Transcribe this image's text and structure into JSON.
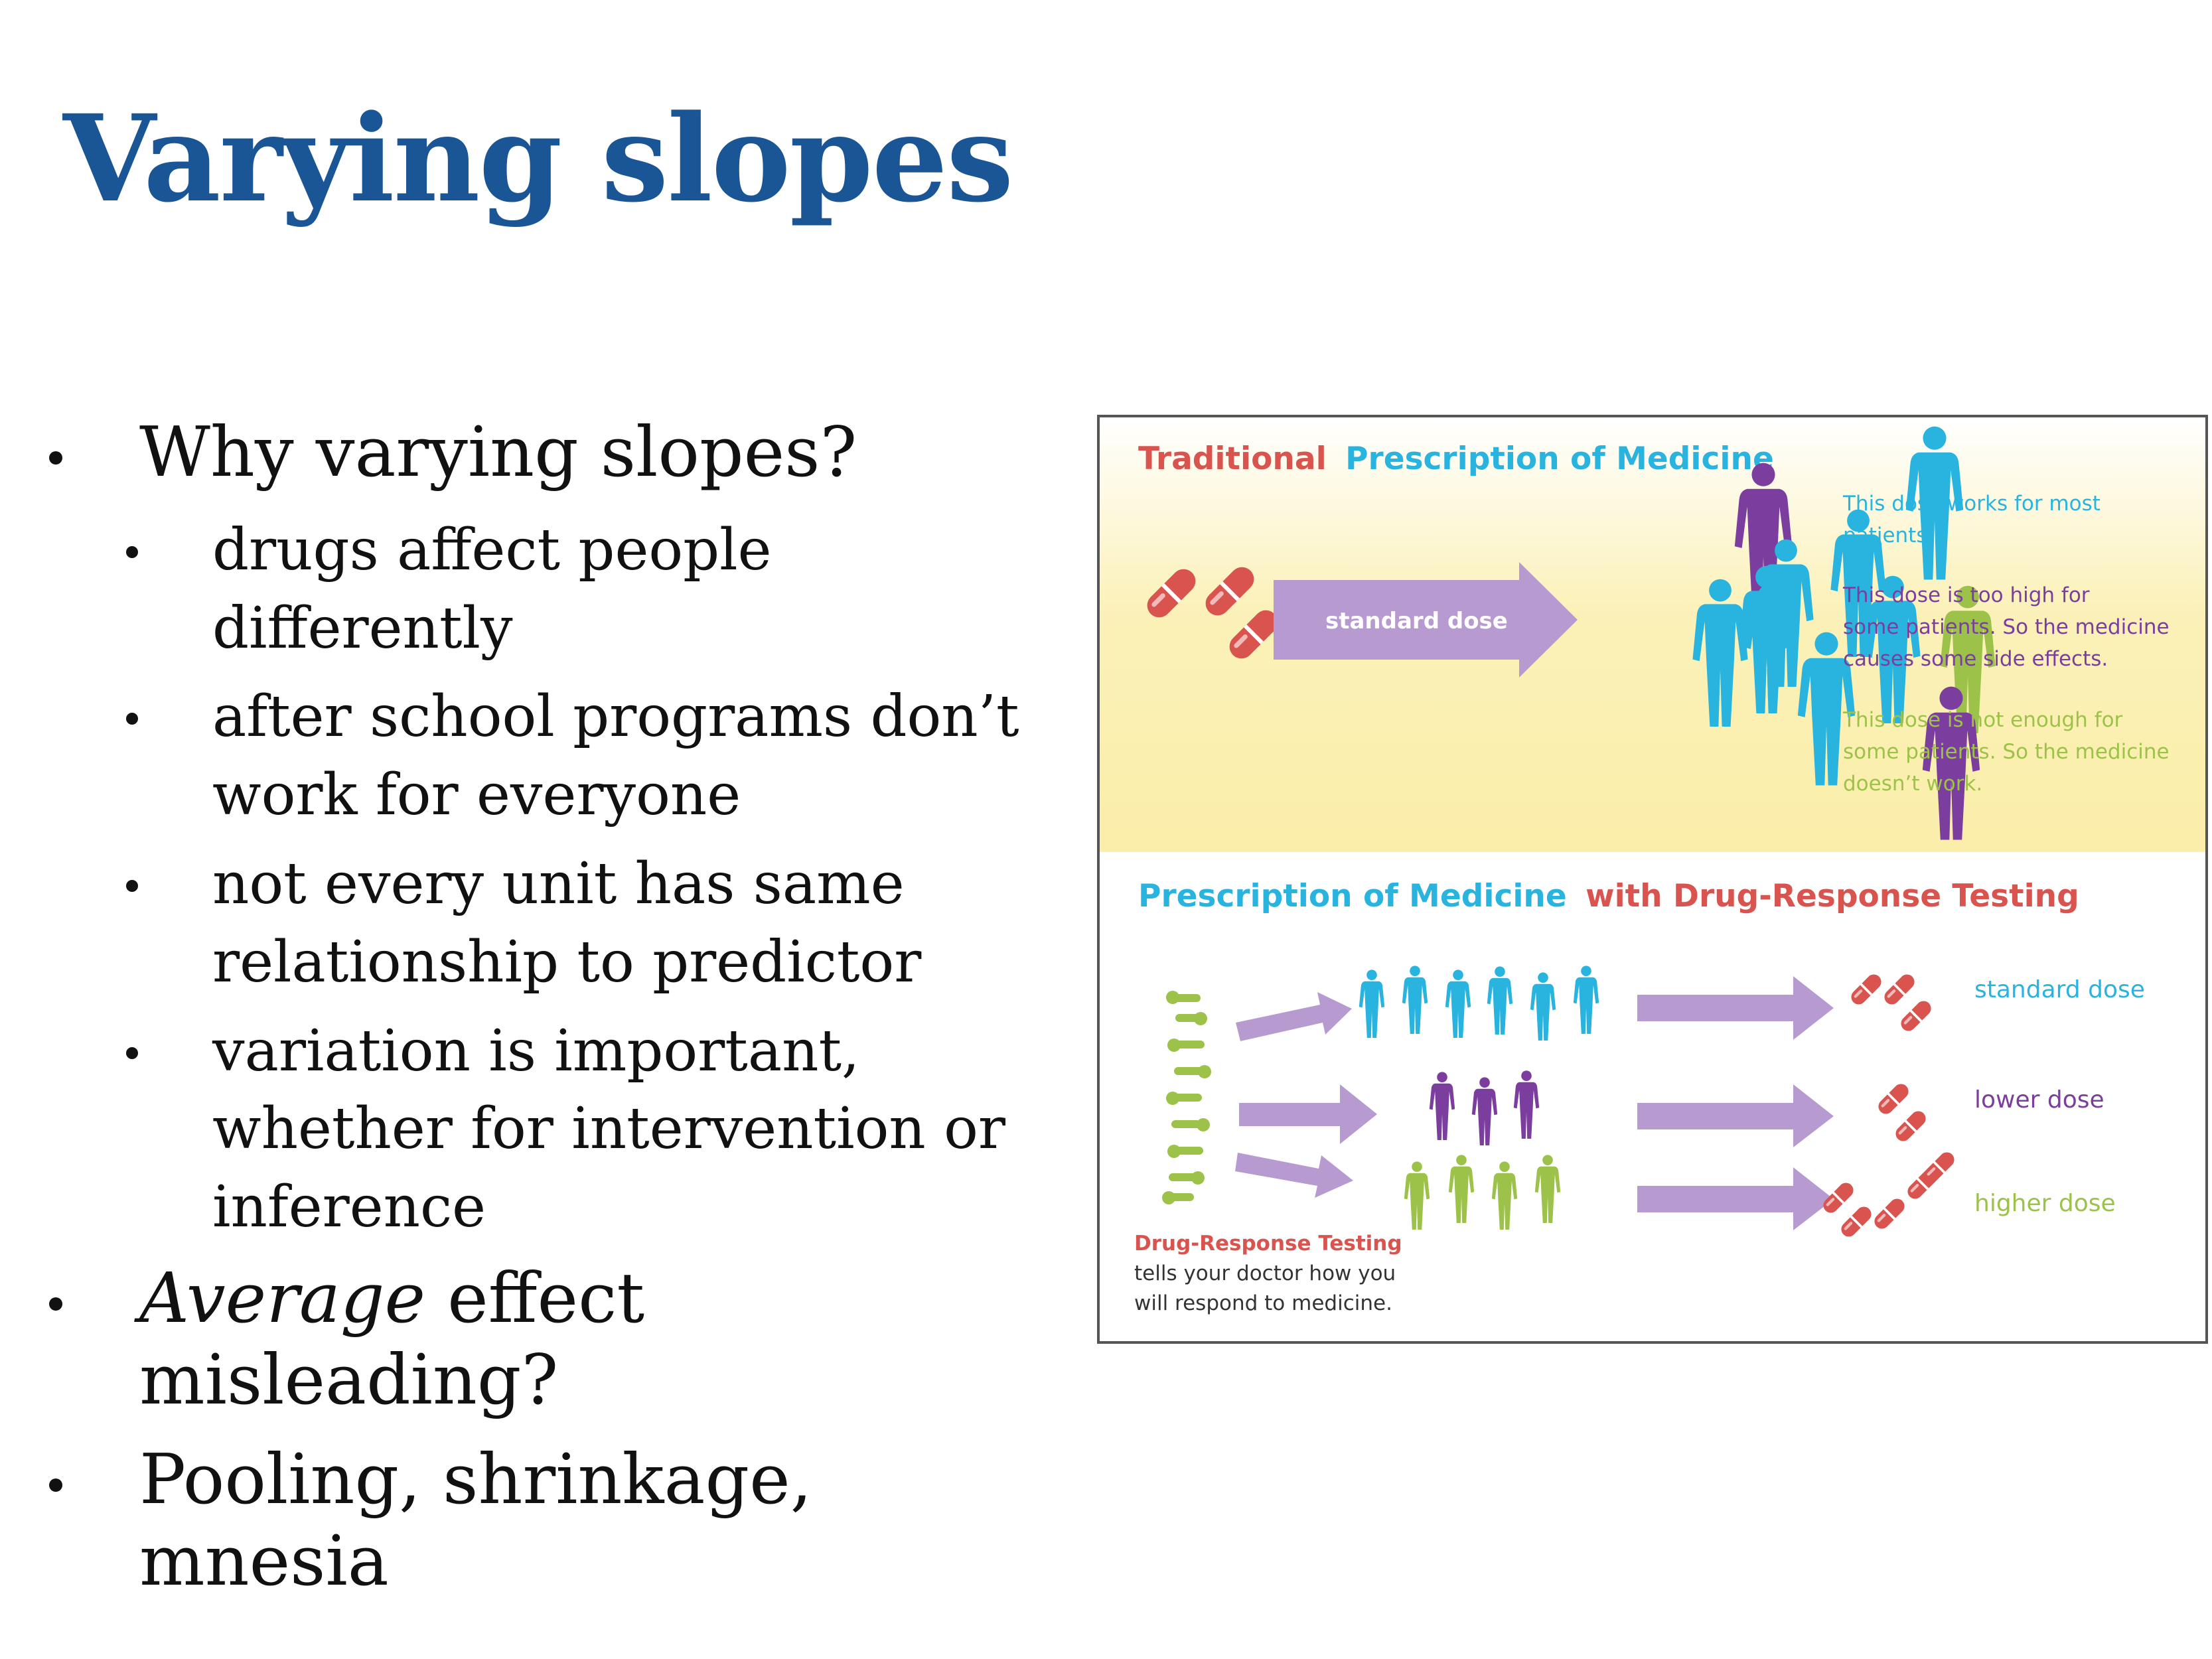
{
  "slide": {
    "title": "Varying slopes",
    "bullets": [
      {
        "text": "Why varying slopes?",
        "sub": [
          "drugs affect people differently",
          "after school programs don’t work for everyone",
          "not every unit has same relationship to predictor",
          "variation is important, whether for intervention or inference"
        ]
      },
      {
        "italic": "Average",
        "text": " effect misleading?"
      },
      {
        "text": "Pooling, shrinkage, mnesia"
      }
    ]
  },
  "figure": {
    "top": {
      "title_part1": "Traditional",
      "title_part2": "Prescription of Medicine",
      "arrow_label": "standard dose",
      "note1": [
        "This dose works for most",
        "patients."
      ],
      "note2": [
        "This dose is too high for",
        "some patients. So the medicine",
        "causes some side effects."
      ],
      "note3": [
        "This dose is not enough for",
        "some patients. So the medicine",
        "doesn’t work."
      ]
    },
    "bottom": {
      "title_part1": "Prescription of Medicine",
      "title_part2": "with Drug-Response Testing",
      "doses": [
        "standard dose",
        "lower dose",
        "higher dose"
      ],
      "caption_title": "Drug-Response Testing",
      "caption_lines": [
        "tells your doctor how you",
        "will respond to medicine."
      ]
    },
    "colors": {
      "red": "#d9534f",
      "blue": "#29b4e0",
      "purple": "#7b3d9e",
      "green": "#9cc24a",
      "arrow": "#b79bd0",
      "yellow": "#fbf1b8"
    }
  }
}
